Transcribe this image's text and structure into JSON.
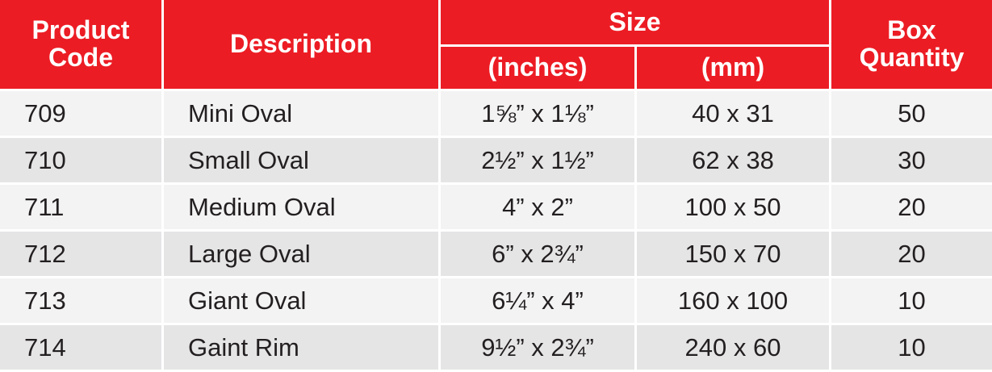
{
  "table": {
    "header": {
      "code": "Product Code",
      "description": "Description",
      "size": "Size",
      "inches": "(inches)",
      "mm": "(mm)",
      "quantity": "Box Quantity"
    },
    "rows": [
      [
        "709",
        "Mini Oval",
        "1⅝” x 1⅛”",
        "40 x 31",
        50
      ],
      [
        "710",
        "Small Oval",
        "2½” x 1½”",
        "62 x 38",
        30
      ],
      [
        "711",
        "Medium Oval",
        "4” x 2”",
        "100 x 50",
        20
      ],
      [
        "712",
        "Large Oval",
        "6” x 2¾”",
        "150 x 70",
        20
      ],
      [
        "713",
        "Giant Oval",
        "6¼” x 4”",
        "160 x 100",
        10
      ],
      [
        "714",
        "Gaint Rim",
        "9½” x 2¾”",
        "240 x 60",
        10
      ]
    ]
  }
}
